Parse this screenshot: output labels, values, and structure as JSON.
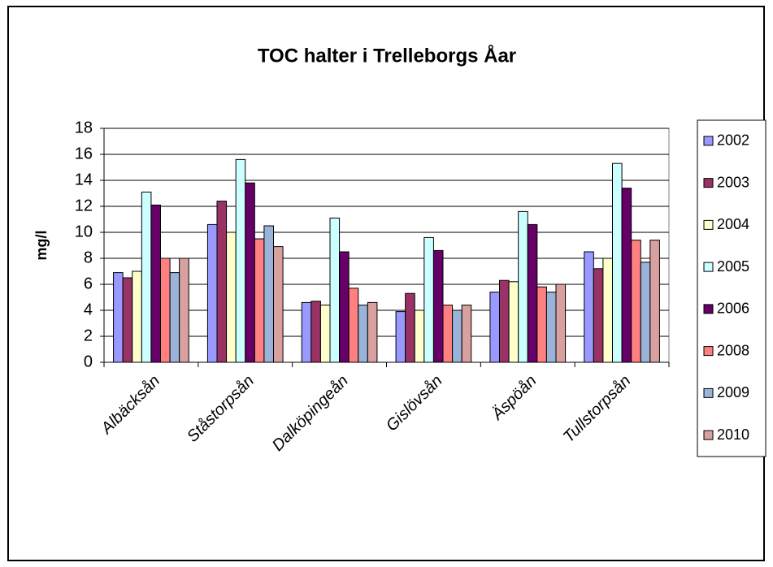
{
  "chart_data": {
    "type": "bar",
    "title": "TOC halter i Trelleborgs Åar",
    "y_label": "mg/l",
    "categories": [
      "Albäcksån",
      "Ståstorpsån",
      "Dalköpingeån",
      "Gislövsån",
      "Äspöån",
      "Tullstorpsån"
    ],
    "series": [
      {
        "name": "2002",
        "color": "#9999ff",
        "values": [
          6.9,
          10.6,
          4.6,
          3.9,
          5.4,
          8.5
        ]
      },
      {
        "name": "2003",
        "color": "#993366",
        "values": [
          6.5,
          12.4,
          4.7,
          5.3,
          6.3,
          7.2
        ]
      },
      {
        "name": "2004",
        "color": "#ffffcc",
        "values": [
          7.0,
          10.0,
          4.4,
          4.0,
          6.2,
          8.0
        ]
      },
      {
        "name": "2005",
        "color": "#ccffff",
        "values": [
          13.1,
          15.6,
          11.1,
          9.6,
          11.6,
          15.3
        ]
      },
      {
        "name": "2006",
        "color": "#660066",
        "values": [
          12.1,
          13.8,
          8.5,
          8.6,
          10.6,
          13.4
        ]
      },
      {
        "name": "2008",
        "color": "#ff8080",
        "values": [
          8.0,
          9.5,
          5.7,
          4.4,
          5.8,
          9.4
        ]
      },
      {
        "name": "2009",
        "color": "#99b3d9",
        "values": [
          6.9,
          10.5,
          4.4,
          4.0,
          5.4,
          7.7
        ]
      },
      {
        "name": "2010",
        "color": "#d9a0a0",
        "values": [
          8.0,
          8.9,
          4.6,
          4.4,
          6.0,
          9.4
        ]
      }
    ],
    "ylim": [
      0,
      18
    ],
    "yticks": [
      0,
      2,
      4,
      6,
      8,
      10,
      12,
      14,
      16,
      18
    ],
    "grid": true,
    "legend": "right"
  }
}
